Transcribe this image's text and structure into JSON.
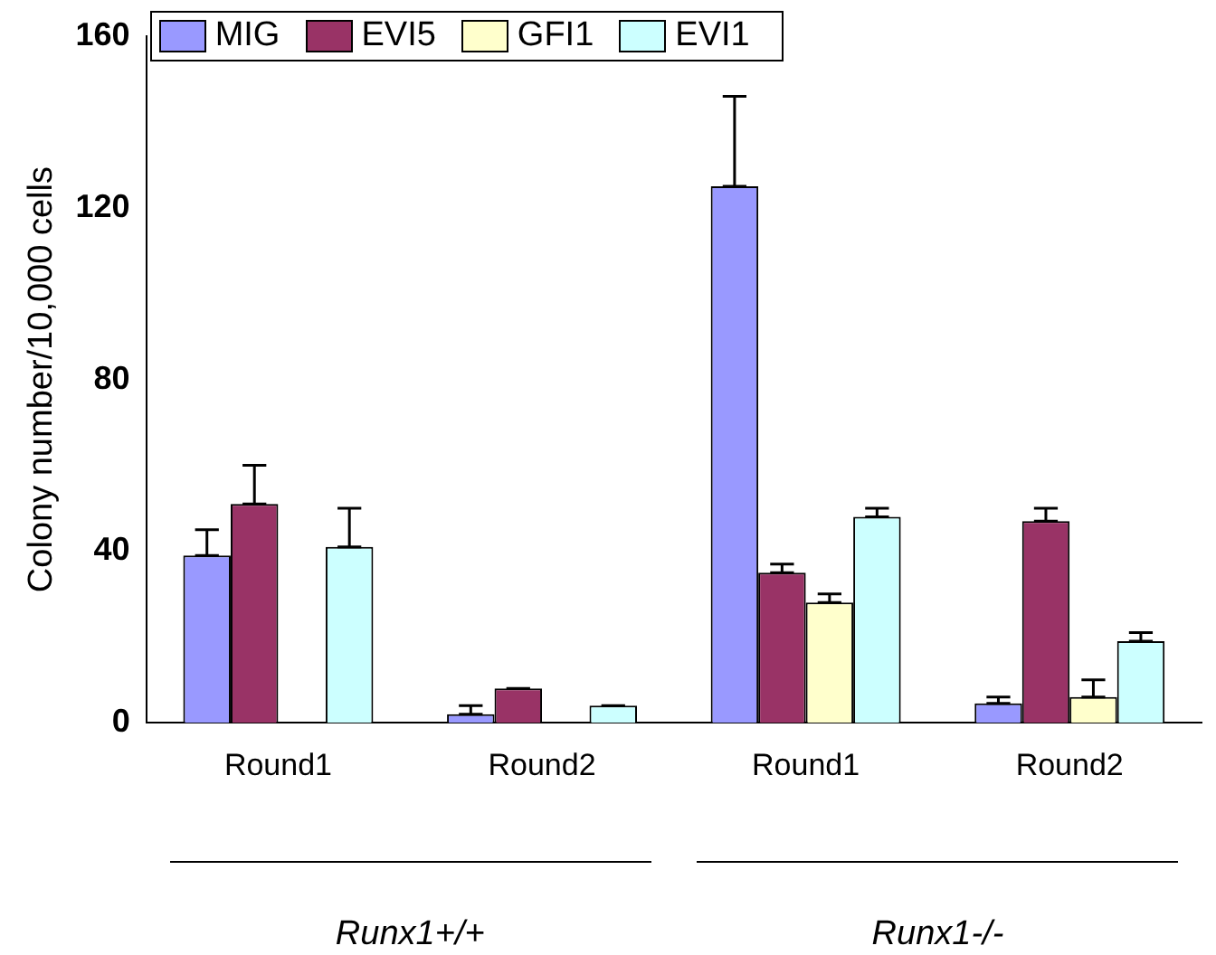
{
  "chart_data": {
    "type": "bar",
    "ylabel": "Colony number/10,000 cells",
    "categories": [
      "Round1",
      "Round2",
      "Round1",
      "Round2"
    ],
    "series": [
      {
        "name": "MIG",
        "color": "#9999ff",
        "values": [
          39,
          2,
          125,
          4.5
        ],
        "errors": [
          [
            39,
            45
          ],
          [
            2,
            4
          ],
          [
            125,
            146
          ],
          [
            4.5,
            6
          ]
        ]
      },
      {
        "name": "EVI5",
        "color": "#993366",
        "values": [
          51,
          8,
          35,
          47
        ],
        "errors": [
          [
            51,
            60
          ],
          [
            8,
            8
          ],
          [
            35,
            37
          ],
          [
            47,
            50
          ]
        ]
      },
      {
        "name": "GFI1",
        "color": "#ffffcc",
        "values": [
          0,
          0,
          28,
          6
        ],
        "errors": [
          null,
          null,
          [
            28,
            30
          ],
          [
            6,
            10
          ]
        ]
      },
      {
        "name": "EVI1",
        "color": "#ccffff",
        "values": [
          41,
          4,
          48,
          19
        ],
        "errors": [
          [
            41,
            50
          ],
          [
            4,
            4
          ],
          [
            48,
            50
          ],
          [
            19,
            21
          ]
        ]
      }
    ],
    "ylim": [
      0,
      160
    ],
    "yticks": [
      0,
      40,
      80,
      120,
      160
    ],
    "grid": false,
    "legend": "top left",
    "annotations": [
      "Runx1+/+",
      "Runx1-/-"
    ]
  }
}
